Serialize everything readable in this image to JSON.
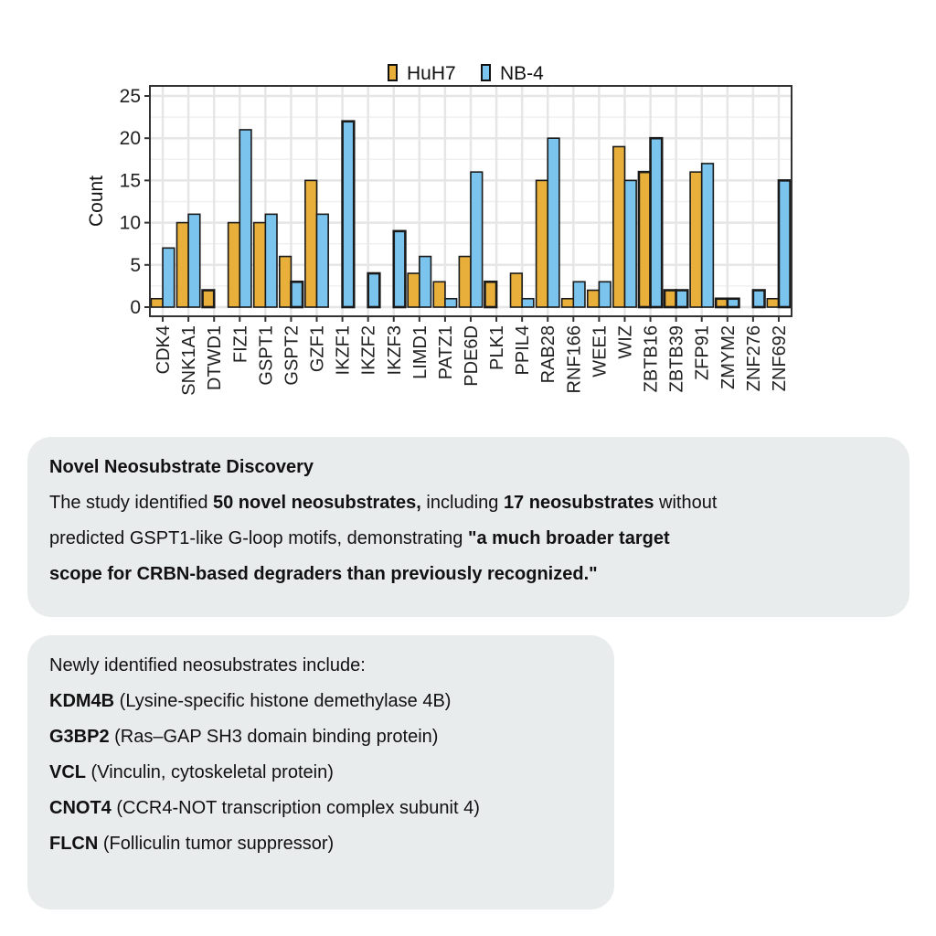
{
  "chart_data": {
    "type": "bar",
    "title": "",
    "xlabel": "",
    "ylabel": "Count",
    "ylim": [
      0,
      25.5
    ],
    "yticks": [
      0,
      5,
      10,
      15,
      20,
      25
    ],
    "grid": true,
    "legend_position": "top",
    "categories": [
      "CDK4",
      "CSNK1A1",
      "DTWD1",
      "FIZ1",
      "GSPT1",
      "GSPT2",
      "GZF1",
      "IKZF1",
      "IKZF2",
      "IKZF3",
      "LIMD1",
      "PATZ1",
      "PDE6D",
      "PLK1",
      "PPIL4",
      "RAB28",
      "RNF166",
      "WEE1",
      "WIZ",
      "ZBTB16",
      "ZBTB39",
      "ZFP91",
      "ZMYM2",
      "ZNF276",
      "ZNF692"
    ],
    "category_labels_shown": [
      "CDK4",
      "SNK1A1",
      "DTWD1",
      "FIZ1",
      "GSPT1",
      "GSPT2",
      "GZF1",
      "IKZF1",
      "IKZF2",
      "IKZF3",
      "LIMD1",
      "PATZ1",
      "PDE6D",
      "PLK1",
      "PPIL4",
      "RAB28",
      "RNF166",
      "WEE1",
      "WIZ",
      "ZBTB16",
      "ZBTB39",
      "ZFP91",
      "ZMYM2",
      "ZNF276",
      "ZNF692"
    ],
    "series": [
      {
        "name": "HuH7",
        "color": "#E8B03A",
        "values": [
          1,
          10,
          2,
          10,
          10,
          6,
          15,
          0,
          0,
          0,
          4,
          3,
          6,
          3,
          4,
          15,
          1,
          2,
          19,
          16,
          2,
          16,
          1,
          0,
          1
        ],
        "bold_outline": [
          false,
          false,
          true,
          false,
          false,
          false,
          false,
          false,
          false,
          false,
          false,
          false,
          false,
          true,
          false,
          false,
          false,
          false,
          false,
          true,
          true,
          false,
          true,
          false,
          false
        ]
      },
      {
        "name": "NB-4",
        "color": "#7AC4EE",
        "values": [
          7,
          11,
          0,
          21,
          11,
          3,
          11,
          22,
          4,
          9,
          6,
          1,
          16,
          0,
          1,
          20,
          3,
          3,
          15,
          20,
          2,
          17,
          1,
          2,
          15
        ],
        "bold_outline": [
          false,
          false,
          false,
          false,
          false,
          true,
          false,
          true,
          true,
          true,
          false,
          false,
          false,
          false,
          false,
          false,
          false,
          false,
          false,
          true,
          true,
          false,
          true,
          true,
          true
        ]
      }
    ]
  },
  "box1": {
    "heading": "Novel Neosubstrate Discovery",
    "l1_a": "The study identified ",
    "l1_b": "50 novel neosubstrates,",
    "l1_c": " including ",
    "l1_d": "17 neosubstrates",
    "l1_e": " without",
    "l2_a": "predicted GSPT1-like G-loop motifs, demonstrating ",
    "l2_b": "\"a much broader target",
    "l3": "scope for CRBN-based degraders than previously recognized.\""
  },
  "box2": {
    "intro": "Newly identified neosubstrates include:",
    "items": [
      {
        "name": "KDM4B",
        "desc": " (Lysine-specific histone demethylase 4B)"
      },
      {
        "name": "G3BP2",
        "desc": " (Ras–GAP SH3 domain binding protein)"
      },
      {
        "name": "VCL",
        "desc": " (Vinculin, cytoskeletal protein)"
      },
      {
        "name": "CNOT4",
        "desc": " (CCR4-NOT transcription complex subunit 4)"
      },
      {
        "name": "FLCN",
        "desc": " (Folliculin tumor suppressor)"
      }
    ]
  }
}
